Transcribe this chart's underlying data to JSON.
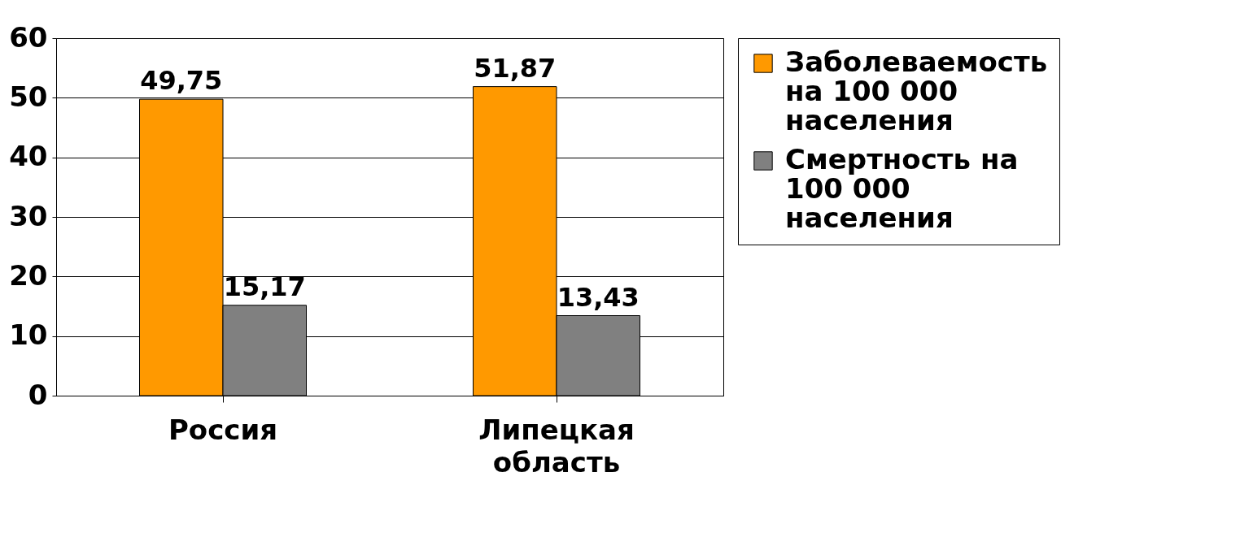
{
  "chart_data": {
    "type": "bar",
    "categories": [
      "Россия",
      "Липецкая область"
    ],
    "series": [
      {
        "name": "Заболеваемость на 100 000 населения",
        "color": "#ff9900",
        "values": [
          49.75,
          51.87
        ],
        "value_labels": [
          "49,75",
          "51,87"
        ]
      },
      {
        "name": "Смертность на 100 000 населения",
        "color": "#808080",
        "values": [
          15.17,
          13.43
        ],
        "value_labels": [
          "15,17",
          "13,43"
        ]
      }
    ],
    "ylim": [
      0,
      60
    ],
    "yticks": [
      0,
      10,
      20,
      30,
      40,
      50,
      60
    ],
    "grid": "y",
    "legend": "right"
  }
}
